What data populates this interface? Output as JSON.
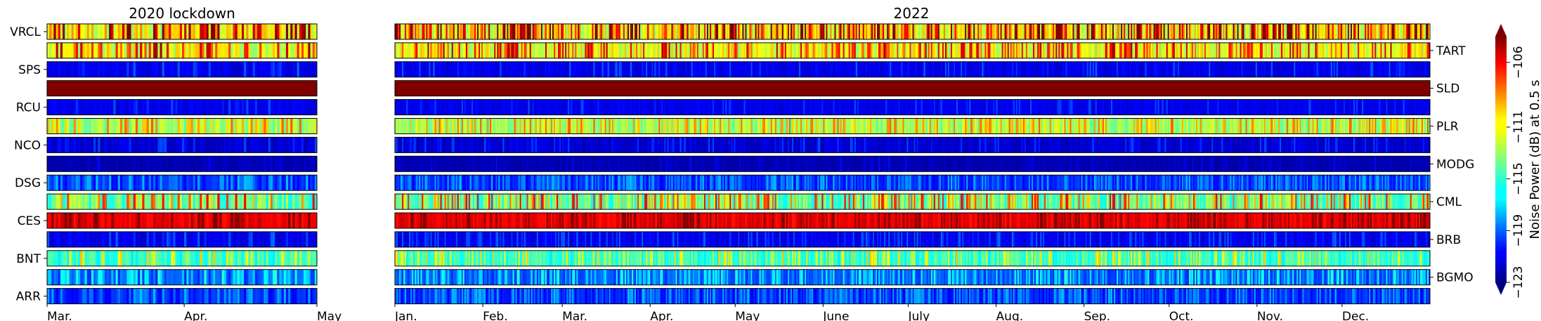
{
  "chart_data": {
    "type": "heatmap",
    "colorbar": {
      "label": "Noise Power (dB) at 0.5 s",
      "ticks": [
        -123,
        -119,
        -115,
        -111,
        -106
      ],
      "range": [
        -123,
        -104
      ],
      "colormap": "jet",
      "extend": "both"
    },
    "panels": [
      {
        "title": "2020 lockdown",
        "x_ticks": [
          "Mar.",
          "Apr.",
          "May"
        ],
        "x_range_days": 61,
        "left_labels": [
          "VRCL",
          "SPS",
          "RCU",
          "NCO",
          "DSG",
          "CES",
          "BNT",
          "ARR"
        ]
      },
      {
        "title": "2022",
        "x_ticks": [
          "Jan.",
          "Feb.",
          "Mar.",
          "Apr.",
          "May",
          "June",
          "July",
          "Aug.",
          "Sep.",
          "Oct.",
          "Nov.",
          "Dec."
        ],
        "x_range_days": 365,
        "right_labels": [
          "TART",
          "SLD",
          "PLR",
          "MODG",
          "CML",
          "BRB",
          "BGMO"
        ]
      }
    ],
    "stations": [
      {
        "name": "VRCL",
        "mean": -111,
        "var": 4.5,
        "stripe": 0.35
      },
      {
        "name": "TART",
        "mean": -111.5,
        "var": 3.5,
        "stripe": 0.3
      },
      {
        "name": "SPS",
        "mean": -121,
        "var": 1.2,
        "stripe": 0.1
      },
      {
        "name": "SLD",
        "mean": -103.5,
        "var": 0.3,
        "stripe": 0.02
      },
      {
        "name": "RCU",
        "mean": -121,
        "var": 1.0,
        "stripe": 0.1
      },
      {
        "name": "PLR",
        "mean": -113,
        "var": 2.5,
        "stripe": 0.3
      },
      {
        "name": "NCO",
        "mean": -121.5,
        "var": 1.2,
        "stripe": 0.15
      },
      {
        "name": "MODG",
        "mean": -122,
        "var": 0.8,
        "stripe": 0.08
      },
      {
        "name": "DSG",
        "mean": -120,
        "var": 1.5,
        "stripe": 0.35
      },
      {
        "name": "CML",
        "mean": -114,
        "var": 4.0,
        "stripe": 0.3
      },
      {
        "name": "CES",
        "mean": -106,
        "var": 1.5,
        "stripe": 0.2
      },
      {
        "name": "BRB",
        "mean": -121,
        "var": 1.2,
        "stripe": 0.2
      },
      {
        "name": "BNT",
        "mean": -115,
        "var": 2.5,
        "stripe": 0.2
      },
      {
        "name": "BGMO",
        "mean": -119,
        "var": 2.0,
        "stripe": 0.35
      },
      {
        "name": "ARR",
        "mean": -120,
        "var": 1.5,
        "stripe": 0.35
      }
    ]
  }
}
